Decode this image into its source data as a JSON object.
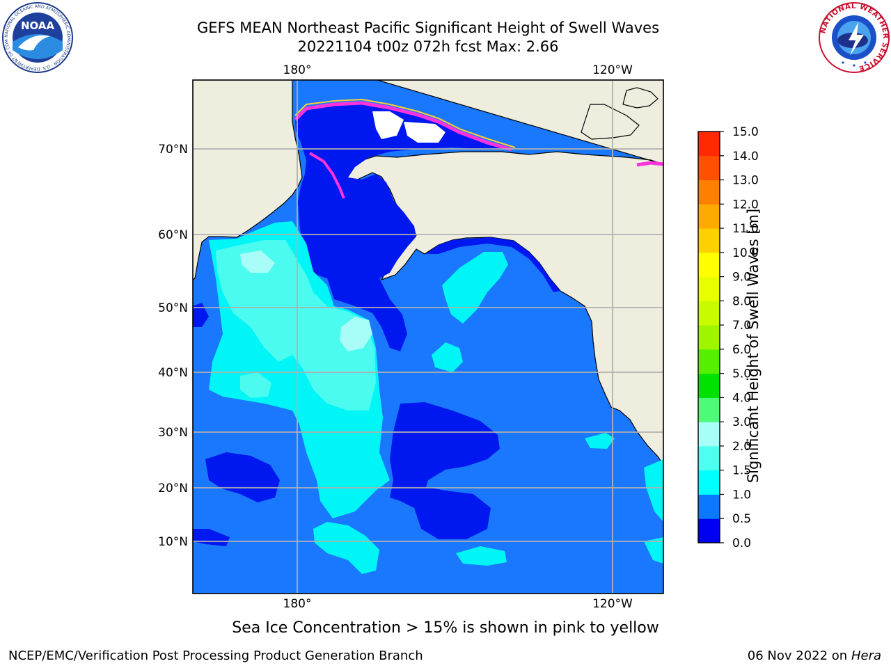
{
  "title": {
    "line1": "GEFS MEAN Northeast Pacific Significant Height of Swell Waves",
    "line2": "20221104 t00z 072h fcst   Max: 2.66"
  },
  "map": {
    "lon_labels": [
      "180°",
      "120°W"
    ],
    "lat_labels": [
      "70°N",
      "60°N",
      "50°N",
      "40°N",
      "30°N",
      "20°N",
      "10°N"
    ],
    "colors": {
      "land": "#efedde",
      "ocean_0_0p5": "#0018f0",
      "ocean_0p5_1": "#1a78ff",
      "ocean_1_1p5": "#00f6f6",
      "ocean_1p5_2": "#4bfbf0",
      "ocean_2_3": "#a8fdf8",
      "sea_ice_pink": "#ff33dd",
      "sea_ice_yellow": "#ffcc33",
      "gridline": "#b0b0b0"
    }
  },
  "colorbar": {
    "title": "Significant Height of Swell Waves [m]",
    "tick_labels": [
      "15.0",
      "14.0",
      "13.0",
      "12.0",
      "11.0",
      "10.0",
      "9.0",
      "8.0",
      "7.0",
      "6.0",
      "5.0",
      "4.0",
      "3.0",
      "2.0",
      "1.5",
      "1.0",
      "0.5",
      "0.0"
    ],
    "colors": [
      "#0000f0",
      "#0a78ff",
      "#00ffff",
      "#4dfff0",
      "#a8fff8",
      "#4dfb78",
      "#00e100",
      "#55f000",
      "#9ff500",
      "#c8fa00",
      "#e8ff00",
      "#ffff00",
      "#ffd000",
      "#ffaa00",
      "#ff8000",
      "#ff5000",
      "#ff2a00",
      "#ff0000"
    ]
  },
  "footnote": "Sea Ice Concentration > 15% is shown in pink to yellow",
  "footer": {
    "left": "NCEP/EMC/Verification Post Processing Product Generation Branch",
    "right_prefix": "06 Nov 2022 on",
    "right_italic": "Hera"
  },
  "logos": {
    "noaa_text": "NOAA",
    "noaa_ring_text": "NATIONAL OCEANIC AND ATMOSPHERIC ADMINISTRATION · U.S. DEPARTMENT OF COMMERCE",
    "nws_ring_text": "NATIONAL WEATHER SERVICE"
  }
}
